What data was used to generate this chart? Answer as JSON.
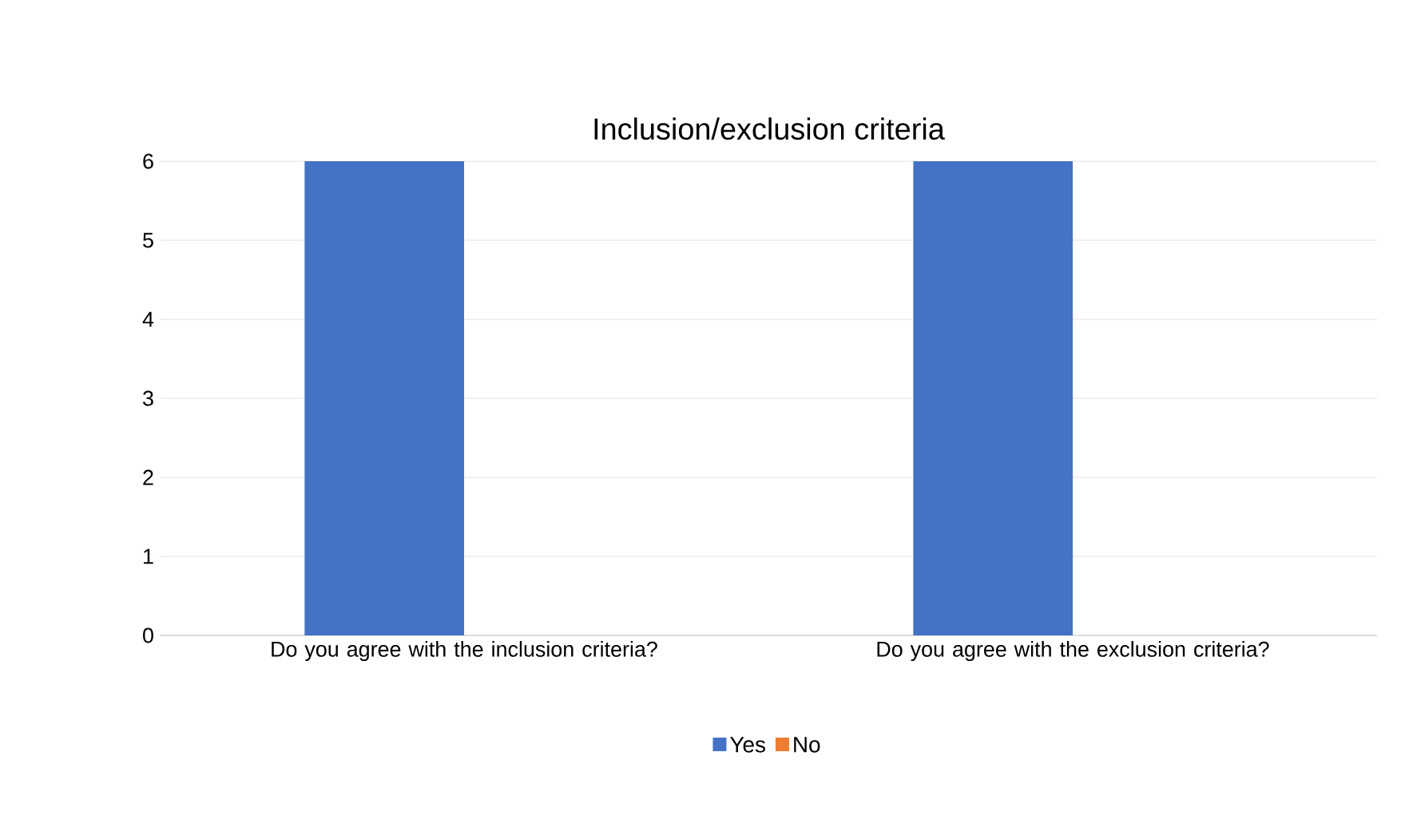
{
  "chart_data": {
    "type": "bar",
    "title": "Inclusion/exclusion criteria",
    "categories": [
      "Do you agree with the inclusion criteria?",
      "Do you agree with the exclusion criteria?"
    ],
    "series": [
      {
        "name": "Yes",
        "color": "#4472c4",
        "values": [
          6,
          6
        ]
      },
      {
        "name": "No",
        "color": "#ed7d31",
        "values": [
          0,
          0
        ]
      }
    ],
    "ylim": [
      0,
      6
    ],
    "yticks": [
      0,
      1,
      2,
      3,
      4,
      5,
      6
    ],
    "grid": "y",
    "legend": "bottom"
  }
}
